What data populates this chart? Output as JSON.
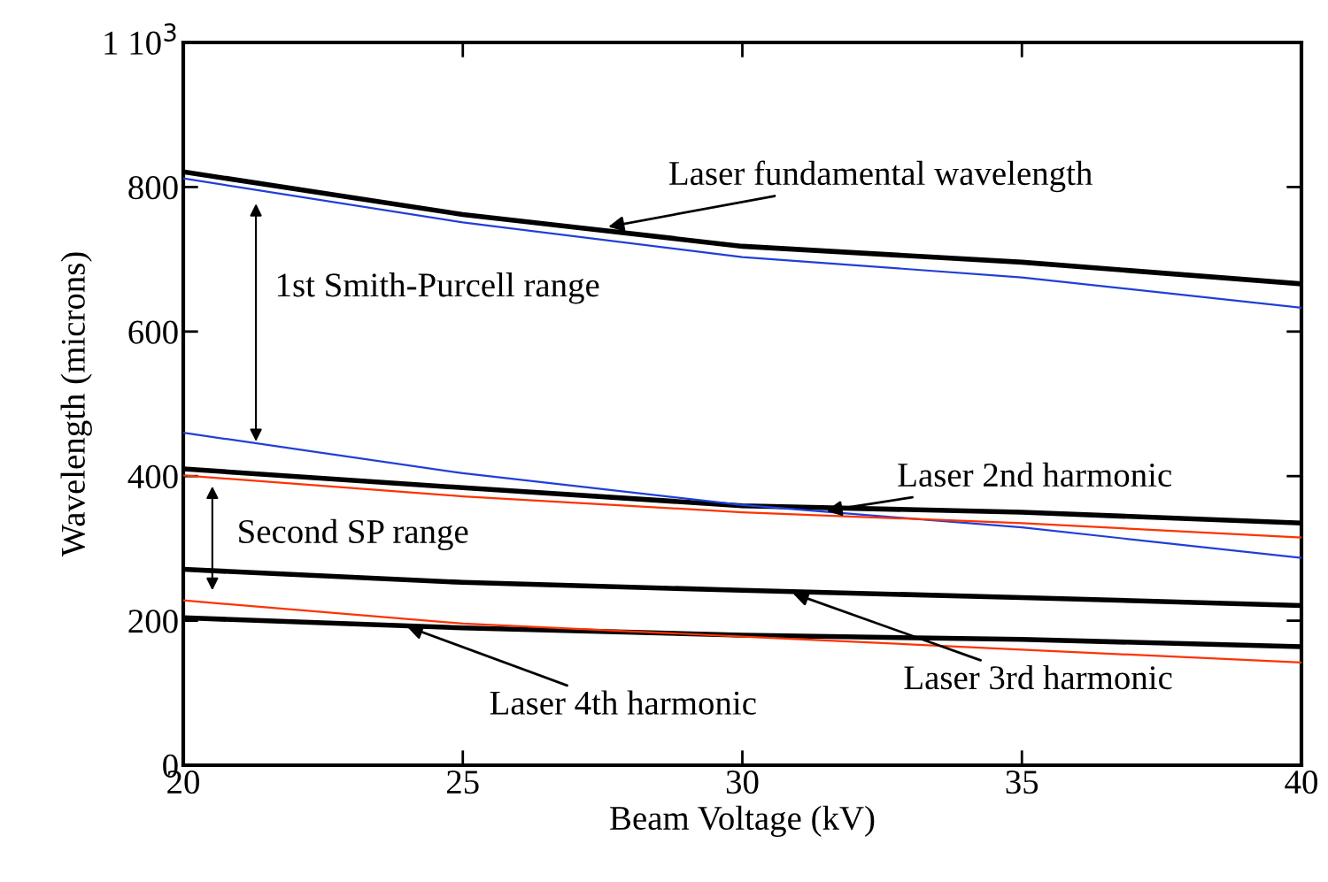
{
  "chart_data": {
    "type": "line",
    "xlabel": "Beam Voltage (kV)",
    "ylabel": "Wavelength (microns)",
    "x": [
      20,
      25,
      30,
      35,
      40
    ],
    "series": [
      {
        "color": "#000000",
        "values": [
          821,
          762,
          718,
          696,
          666
        ]
      },
      {
        "color": "#1f3fd8",
        "values": [
          812,
          751,
          703,
          675,
          633
        ]
      },
      {
        "color": "#1f3fd8",
        "values": [
          460,
          404,
          360,
          329,
          287
        ]
      },
      {
        "color": "#000000",
        "values": [
          410,
          384,
          359,
          350,
          335
        ]
      },
      {
        "color": "#ff3300",
        "values": [
          401,
          372,
          350,
          335,
          315
        ]
      },
      {
        "color": "#000000",
        "values": [
          271,
          253,
          242,
          232,
          221
        ]
      },
      {
        "color": "#ff3300",
        "values": [
          228,
          196,
          178,
          160,
          142
        ]
      },
      {
        "color": "#000000",
        "values": [
          204,
          190,
          180,
          174,
          164
        ]
      }
    ],
    "xlim": [
      20,
      40
    ],
    "ylim": [
      0,
      1000
    ],
    "xticks": [
      20,
      25,
      30,
      35,
      40
    ],
    "yticks": [
      0,
      200,
      400,
      600,
      800,
      {
        "value": 1000,
        "label": "1 10$^{3}$"
      }
    ],
    "grid": false,
    "marker": "none",
    "line_style": "solid",
    "annotations": [
      {
        "text": "Laser fundamental wavelength",
        "x": 27.6,
        "y": 745
      },
      "1st Smith-Purcell range",
      {
        "text": "Laser 2nd harmonic",
        "x": 31.5,
        "y": 352
      },
      "Second SP range",
      {
        "text": "Laser 3rd harmonic",
        "x": 30.9,
        "y": 238
      },
      {
        "text": "Laser 4th harmonic",
        "x": 24,
        "y": 192
      }
    ]
  }
}
